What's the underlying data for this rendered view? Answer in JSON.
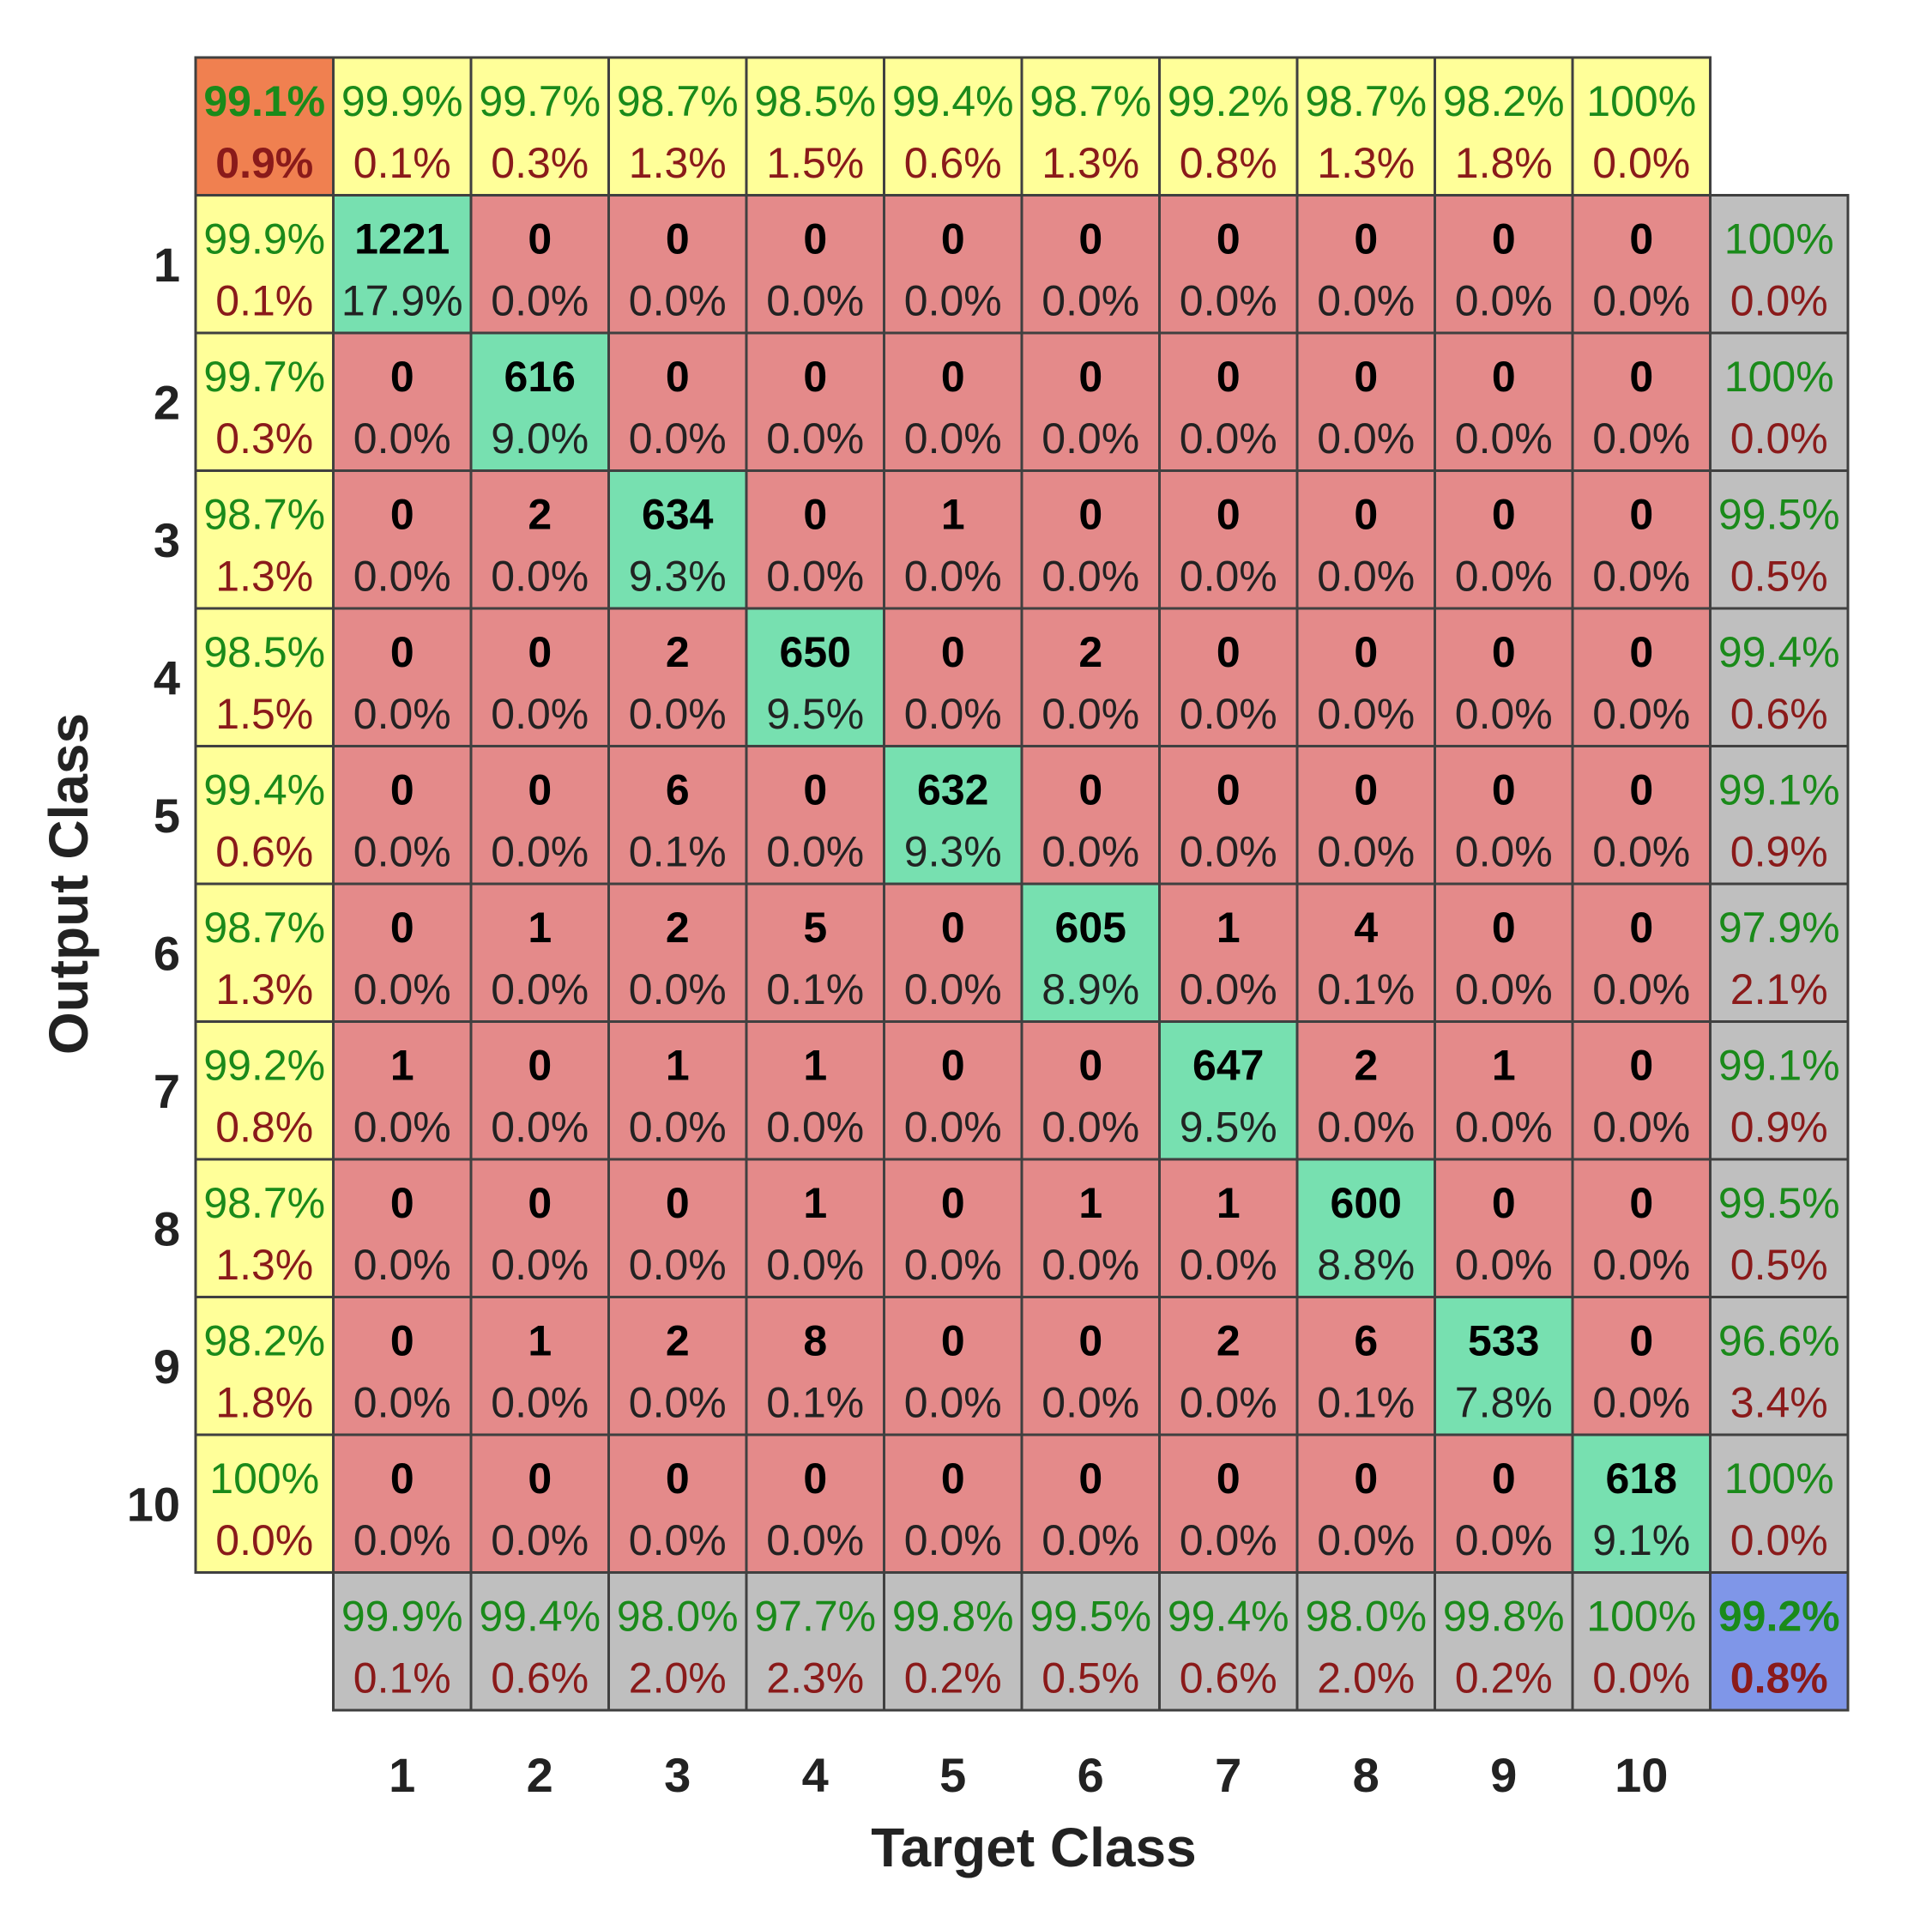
{
  "chart_data": {
    "type": "heatmap",
    "xlabel": "Target Class",
    "ylabel": "Output Class",
    "classes": [
      "1",
      "2",
      "3",
      "4",
      "5",
      "6",
      "7",
      "8",
      "9",
      "10"
    ],
    "matrix": [
      [
        1221,
        0,
        0,
        0,
        0,
        0,
        0,
        0,
        0,
        0
      ],
      [
        0,
        616,
        0,
        0,
        0,
        0,
        0,
        0,
        0,
        0
      ],
      [
        0,
        2,
        634,
        0,
        1,
        0,
        0,
        0,
        0,
        0
      ],
      [
        0,
        0,
        2,
        650,
        0,
        2,
        0,
        0,
        0,
        0
      ],
      [
        0,
        0,
        6,
        0,
        632,
        0,
        0,
        0,
        0,
        0
      ],
      [
        0,
        1,
        2,
        5,
        0,
        605,
        1,
        4,
        0,
        0
      ],
      [
        1,
        0,
        1,
        1,
        0,
        0,
        647,
        2,
        1,
        0
      ],
      [
        0,
        0,
        0,
        1,
        0,
        1,
        1,
        600,
        0,
        0
      ],
      [
        0,
        1,
        2,
        8,
        0,
        0,
        2,
        6,
        533,
        0
      ],
      [
        0,
        0,
        0,
        0,
        0,
        0,
        0,
        0,
        0,
        618
      ]
    ],
    "matrix_percent": [
      [
        "17.9%",
        "0.0%",
        "0.0%",
        "0.0%",
        "0.0%",
        "0.0%",
        "0.0%",
        "0.0%",
        "0.0%",
        "0.0%"
      ],
      [
        "0.0%",
        "9.0%",
        "0.0%",
        "0.0%",
        "0.0%",
        "0.0%",
        "0.0%",
        "0.0%",
        "0.0%",
        "0.0%"
      ],
      [
        "0.0%",
        "0.0%",
        "9.3%",
        "0.0%",
        "0.0%",
        "0.0%",
        "0.0%",
        "0.0%",
        "0.0%",
        "0.0%"
      ],
      [
        "0.0%",
        "0.0%",
        "0.0%",
        "9.5%",
        "0.0%",
        "0.0%",
        "0.0%",
        "0.0%",
        "0.0%",
        "0.0%"
      ],
      [
        "0.0%",
        "0.0%",
        "0.1%",
        "0.0%",
        "9.3%",
        "0.0%",
        "0.0%",
        "0.0%",
        "0.0%",
        "0.0%"
      ],
      [
        "0.0%",
        "0.0%",
        "0.0%",
        "0.1%",
        "0.0%",
        "8.9%",
        "0.0%",
        "0.1%",
        "0.0%",
        "0.0%"
      ],
      [
        "0.0%",
        "0.0%",
        "0.0%",
        "0.0%",
        "0.0%",
        "0.0%",
        "9.5%",
        "0.0%",
        "0.0%",
        "0.0%"
      ],
      [
        "0.0%",
        "0.0%",
        "0.0%",
        "0.0%",
        "0.0%",
        "0.0%",
        "0.0%",
        "8.8%",
        "0.0%",
        "0.0%"
      ],
      [
        "0.0%",
        "0.0%",
        "0.0%",
        "0.1%",
        "0.0%",
        "0.0%",
        "0.0%",
        "0.1%",
        "7.8%",
        "0.0%"
      ],
      [
        "0.0%",
        "0.0%",
        "0.0%",
        "0.0%",
        "0.0%",
        "0.0%",
        "0.0%",
        "0.0%",
        "0.0%",
        "9.1%"
      ]
    ],
    "top_summary": [
      [
        "99.9%",
        "0.1%"
      ],
      [
        "99.7%",
        "0.3%"
      ],
      [
        "98.7%",
        "1.3%"
      ],
      [
        "98.5%",
        "1.5%"
      ],
      [
        "99.4%",
        "0.6%"
      ],
      [
        "98.7%",
        "1.3%"
      ],
      [
        "99.2%",
        "0.8%"
      ],
      [
        "98.7%",
        "1.3%"
      ],
      [
        "98.2%",
        "1.8%"
      ],
      [
        "100%",
        "0.0%"
      ]
    ],
    "left_summary": [
      [
        "99.9%",
        "0.1%"
      ],
      [
        "99.7%",
        "0.3%"
      ],
      [
        "98.7%",
        "1.3%"
      ],
      [
        "98.5%",
        "1.5%"
      ],
      [
        "99.4%",
        "0.6%"
      ],
      [
        "98.7%",
        "1.3%"
      ],
      [
        "99.2%",
        "0.8%"
      ],
      [
        "98.7%",
        "1.3%"
      ],
      [
        "98.2%",
        "1.8%"
      ],
      [
        "100%",
        "0.0%"
      ]
    ],
    "right_summary": [
      [
        "100%",
        "0.0%"
      ],
      [
        "100%",
        "0.0%"
      ],
      [
        "99.5%",
        "0.5%"
      ],
      [
        "99.4%",
        "0.6%"
      ],
      [
        "99.1%",
        "0.9%"
      ],
      [
        "97.9%",
        "2.1%"
      ],
      [
        "99.1%",
        "0.9%"
      ],
      [
        "99.5%",
        "0.5%"
      ],
      [
        "96.6%",
        "3.4%"
      ],
      [
        "100%",
        "0.0%"
      ]
    ],
    "bottom_summary": [
      [
        "99.9%",
        "0.1%"
      ],
      [
        "99.4%",
        "0.6%"
      ],
      [
        "98.0%",
        "2.0%"
      ],
      [
        "97.7%",
        "2.3%"
      ],
      [
        "99.8%",
        "0.2%"
      ],
      [
        "99.5%",
        "0.5%"
      ],
      [
        "99.4%",
        "0.6%"
      ],
      [
        "98.0%",
        "2.0%"
      ],
      [
        "99.8%",
        "0.2%"
      ],
      [
        "100%",
        "0.0%"
      ]
    ],
    "corner_top_left": [
      "99.1%",
      "0.9%"
    ],
    "corner_bottom_right": [
      "99.2%",
      "0.8%"
    ],
    "colors": {
      "correct": "#77e0b0",
      "incorrect": "#e48a8a",
      "summary_yellow": "#ffff99",
      "summary_gray": "#bfbfbf",
      "corner_orange": "#f08050",
      "corner_blue": "#7f96e8",
      "pct_green": "#1a8a1a",
      "pct_red": "#8a1a1a",
      "grid_line": "#404040"
    }
  }
}
